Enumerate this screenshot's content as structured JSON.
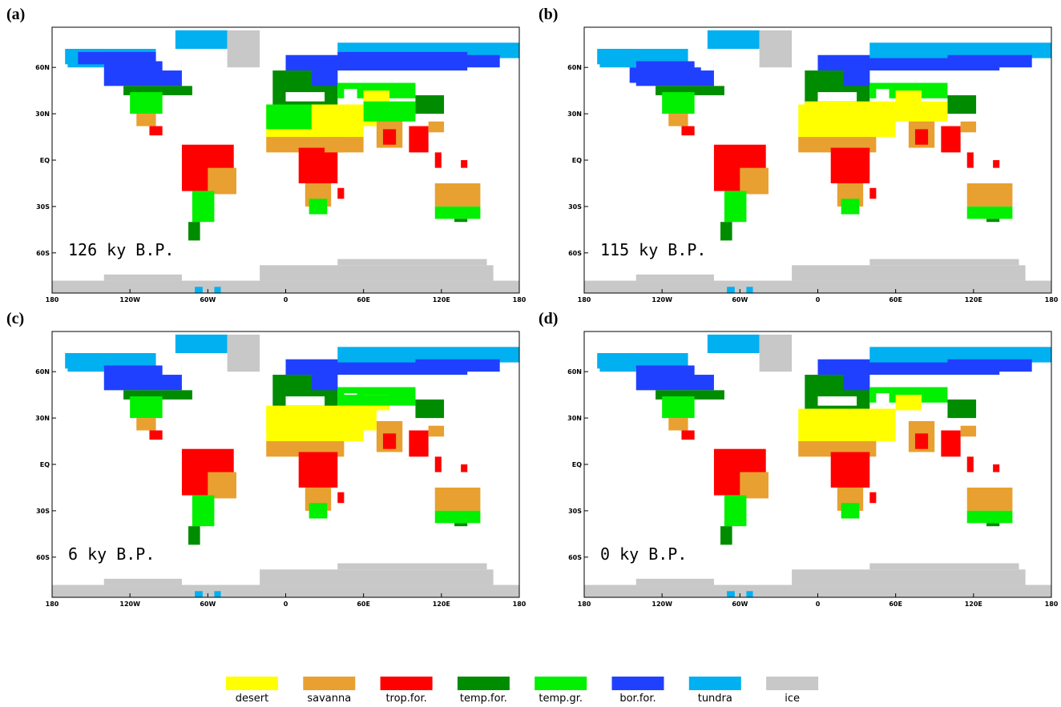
{
  "panels": [
    {
      "label": "(a)",
      "annotation": "126 ky B.P."
    },
    {
      "label": "(b)",
      "annotation": "115 ky B.P."
    },
    {
      "label": "(c)",
      "annotation": "6 ky B.P."
    },
    {
      "label": "(d)",
      "annotation": "0 ky B.P."
    }
  ],
  "lat_ticks": [
    "60N",
    "30N",
    "EQ",
    "30S",
    "60S"
  ],
  "lon_ticks": [
    "180",
    "120W",
    "60W",
    "0",
    "60E",
    "120E",
    "180"
  ],
  "legend": [
    {
      "name": "desert",
      "color": "#ffff00"
    },
    {
      "name": "savanna",
      "color": "#e8a030"
    },
    {
      "name": "trop.for.",
      "color": "#ff0000"
    },
    {
      "name": "temp.for.",
      "color": "#008c00"
    },
    {
      "name": "temp.gr.",
      "color": "#00f000"
    },
    {
      "name": "bor.for.",
      "color": "#2040ff"
    },
    {
      "name": "tundra",
      "color": "#00b0f0"
    },
    {
      "name": "ice",
      "color": "#c8c8c8"
    }
  ]
}
